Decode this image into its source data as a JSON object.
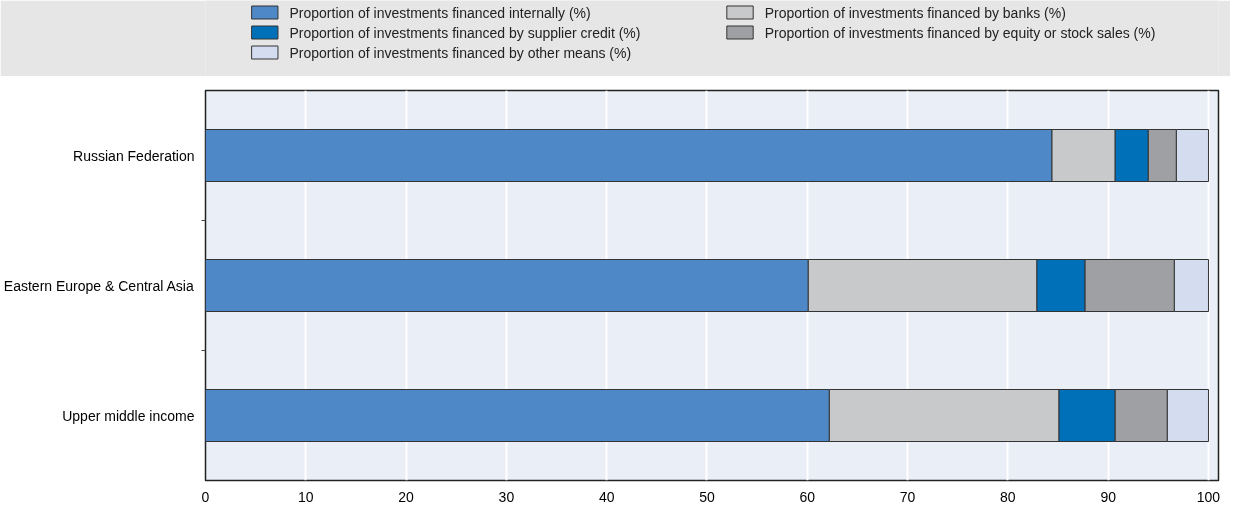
{
  "chart_data": {
    "type": "bar",
    "orientation": "horizontal",
    "stacked": true,
    "categories": [
      "Russian Federation",
      "Eastern Europe & Central Asia",
      "Upper middle income"
    ],
    "series": [
      {
        "name": "Proportion of investments financed internally (%)",
        "color": "#4e88c7",
        "values": [
          84.4,
          60.1,
          62.2
        ]
      },
      {
        "name": "Proportion of investments financed by banks (%)",
        "color": "#c8c9cb",
        "values": [
          6.3,
          22.8,
          22.9
        ]
      },
      {
        "name": "Proportion of investments financed by supplier credit (%)",
        "color": "#0070b8",
        "values": [
          3.3,
          4.8,
          5.6
        ]
      },
      {
        "name": "Proportion of investments financed by equity or stock sales (%)",
        "color": "#9fa0a3",
        "values": [
          2.8,
          8.9,
          5.2
        ]
      },
      {
        "name": "Proportion of investments financed by other means (%)",
        "color": "#d4ddef",
        "values": [
          3.2,
          3.4,
          4.1
        ]
      }
    ],
    "xlim": [
      0,
      101
    ],
    "xticks": [
      0,
      10,
      20,
      30,
      40,
      50,
      60,
      70,
      80,
      90,
      100
    ],
    "grid": "x",
    "legend": "top"
  }
}
